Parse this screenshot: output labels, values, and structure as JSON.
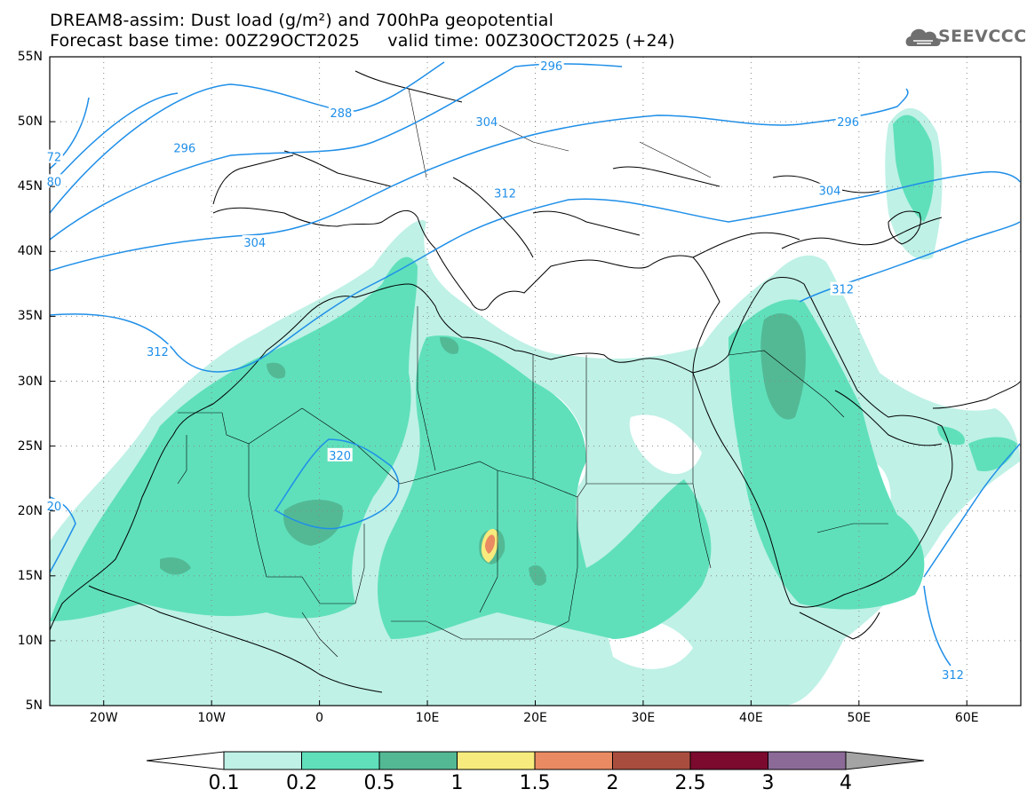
{
  "title": {
    "line1": "DREAM8-assim: Dust load (g/m²) and 700hPa geopotential",
    "line2": "Forecast base time: 00Z29OCT2025     valid time: 00Z30OCT2025 (+24)"
  },
  "logo": {
    "text": "SEEVCCC",
    "icon": "cloud-logo-icon"
  },
  "map": {
    "lon_range": [
      -25,
      65
    ],
    "lat_range": [
      5,
      55
    ],
    "lat_ticks": [
      {
        "value": 55,
        "label": "55N"
      },
      {
        "value": 50,
        "label": "50N"
      },
      {
        "value": 45,
        "label": "45N"
      },
      {
        "value": 40,
        "label": "40N"
      },
      {
        "value": 35,
        "label": "35N"
      },
      {
        "value": 30,
        "label": "30N"
      },
      {
        "value": 25,
        "label": "25N"
      },
      {
        "value": 20,
        "label": "20N"
      },
      {
        "value": 15,
        "label": "15N"
      },
      {
        "value": 10,
        "label": "10N"
      },
      {
        "value": 5,
        "label": "5N"
      }
    ],
    "lon_ticks": [
      {
        "value": -20,
        "label": "20W"
      },
      {
        "value": -10,
        "label": "10W"
      },
      {
        "value": 0,
        "label": "0"
      },
      {
        "value": 10,
        "label": "10E"
      },
      {
        "value": 20,
        "label": "20E"
      },
      {
        "value": 30,
        "label": "30E"
      },
      {
        "value": 40,
        "label": "40E"
      },
      {
        "value": 50,
        "label": "50E"
      },
      {
        "value": 60,
        "label": "60E"
      }
    ],
    "grid": "dotted"
  },
  "contours": {
    "labels": [
      {
        "text": "296",
        "lon": 21.5,
        "lat": 54.3
      },
      {
        "text": "288",
        "lon": 2.0,
        "lat": 50.7
      },
      {
        "text": "304",
        "lon": 15.5,
        "lat": 50.0
      },
      {
        "text": "296",
        "lon": 49.0,
        "lat": 50.0
      },
      {
        "text": "296",
        "lon": -12.5,
        "lat": 48.0
      },
      {
        "text": "72",
        "lon": -24.6,
        "lat": 47.3
      },
      {
        "text": "80",
        "lon": -24.6,
        "lat": 45.4
      },
      {
        "text": "312",
        "lon": 17.2,
        "lat": 44.5
      },
      {
        "text": "304",
        "lon": 47.3,
        "lat": 44.7
      },
      {
        "text": "304",
        "lon": -6.0,
        "lat": 40.7
      },
      {
        "text": "312",
        "lon": 48.5,
        "lat": 37.1
      },
      {
        "text": "312",
        "lon": -15.0,
        "lat": 32.3
      },
      {
        "text": "320",
        "lon": 1.9,
        "lat": 24.3
      },
      {
        "text": "20",
        "lon": -24.6,
        "lat": 20.4
      },
      {
        "text": "312",
        "lon": 58.7,
        "lat": 7.4
      }
    ],
    "color": "#1f8fe8"
  },
  "colorbar": {
    "labels": [
      "0.1",
      "0.2",
      "0.5",
      "1",
      "1.5",
      "2",
      "2.5",
      "3",
      "4"
    ],
    "colors": [
      "#bff1e6",
      "#5fe0bb",
      "#53b995",
      "#f7eb7d",
      "#e98a62",
      "#a94d3f",
      "#7b0a2e",
      "#8c6a98"
    ],
    "below_color": "#ffffff",
    "above_color": "#a4a4a4"
  }
}
